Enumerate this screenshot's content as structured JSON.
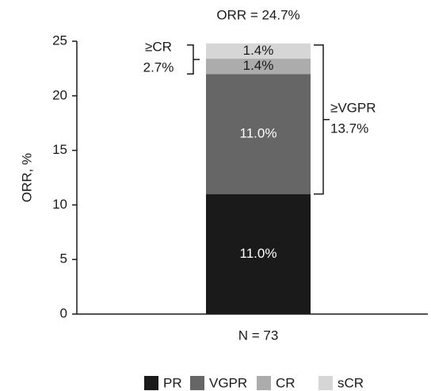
{
  "chart_data": {
    "type": "stacked_bar",
    "y_label": "ORR, %",
    "categories": [
      "N = 73"
    ],
    "series": [
      {
        "name": "PR",
        "color": "#1a1a1a",
        "values": [
          11.0
        ],
        "value_labels": [
          "11.0%"
        ],
        "label_color": "#ffffff"
      },
      {
        "name": "VGPR",
        "color": "#666666",
        "values": [
          11.0
        ],
        "value_labels": [
          "11.0%"
        ],
        "label_color": "#ffffff"
      },
      {
        "name": "CR",
        "color": "#acacac",
        "values": [
          1.4
        ],
        "value_labels": [
          "1.4%"
        ],
        "label_color": "#1a1a1a"
      },
      {
        "name": "sCR",
        "color": "#d6d6d6",
        "values": [
          1.4
        ],
        "value_labels": [
          "1.4%"
        ],
        "label_color": "#1a1a1a"
      }
    ],
    "ylim": [
      0,
      25
    ],
    "yticks": [
      0,
      5,
      10,
      15,
      20,
      25
    ],
    "annotations": [
      "ORR = 24.7%",
      "≥CR",
      "2.7%",
      "≥VGPR",
      "13.7%"
    ]
  }
}
